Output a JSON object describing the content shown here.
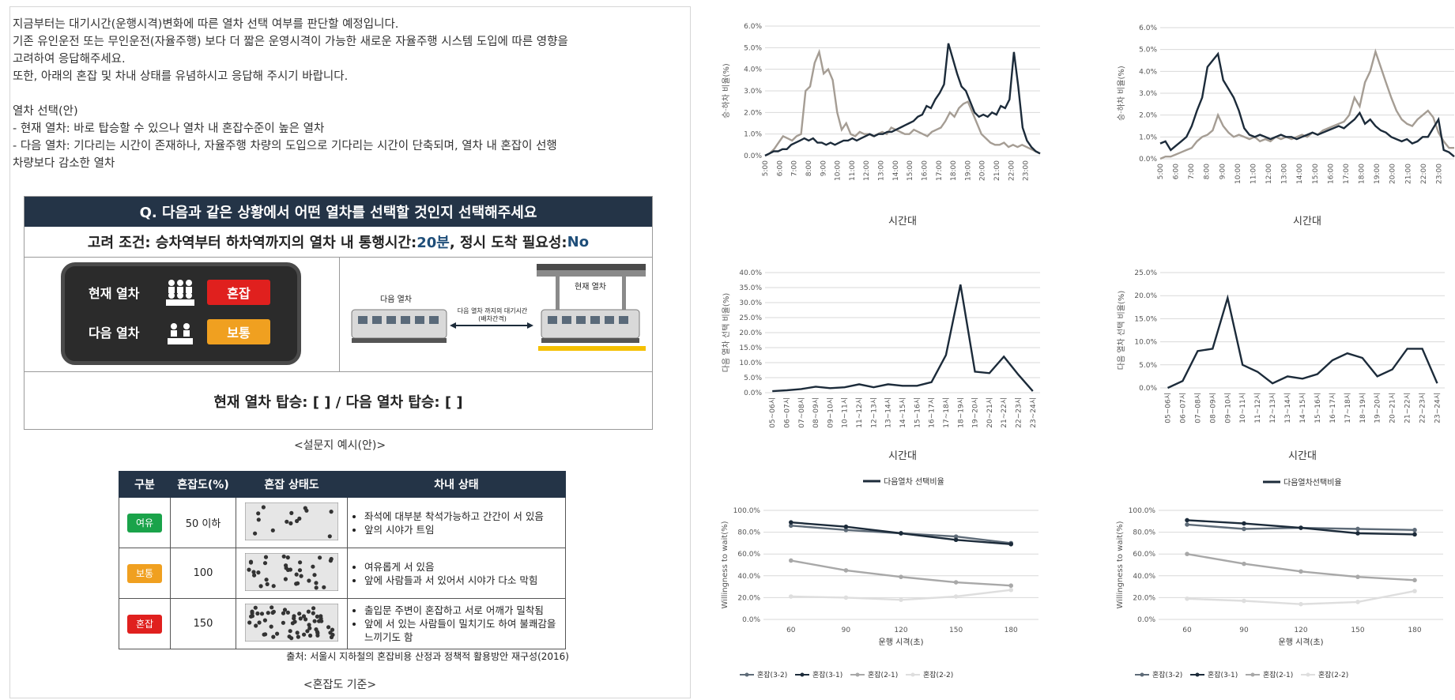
{
  "intro": {
    "lines": [
      "지금부터는 대기시간(운행시격)변화에 따른 열차 선택 여부를 판단할 예정입니다.",
      "기존 유인운전 또는 무인운전(자율주행) 보다 더 짧은 운영시격이 가능한 새로운 자율주행 시스템 도입에 따른 영향을",
      "고려하여 응답해주세요.",
      "또한, 아래의 혼잡 및 차내 상태를 유념하시고 응답해 주시기 바랍니다.",
      "",
      "열차 선택(안)",
      "- 현재 열차: 바로 탑승할 수 있으나 열차 내 혼잡수준이 높은 열차",
      "- 다음 열차: 기다리는 시간이 존재하나, 자율주행 차량의 도입으로 기다리는 시간이 단축되며, 열차 내 혼잡이 선행",
      "  차량보다 감소한 열차"
    ]
  },
  "survey": {
    "question": "Q. 다음과 같은 상황에서 어떤 열차를 선택할 것인지 선택해주세요",
    "condition_prefix": "고려 조건:  승차역부터 하차역까지의 열차 내 통행시간: ",
    "travel_time": "20분",
    "condition_mid": ", 정시 도착 필요성: ",
    "punctuality": "No",
    "current_label": "현재 열차",
    "current_state": "혼잡",
    "next_label": "다음 열차",
    "next_state": "보통",
    "diagram_next": "다음 열차",
    "diagram_current": "현재 열차",
    "diagram_wait": "다음 열차 까지의 대기시간",
    "diagram_headway": "(배차간격)",
    "answer": "현재 열차 탑승: [    ] / 다음 열차 탑승: [  ]",
    "caption": "<설문지 예시(안)>"
  },
  "congestion_table": {
    "headers": [
      "구분",
      "혼잡도(%)",
      "혼잡 상태도",
      "차내 상태"
    ],
    "rows": [
      {
        "level": "여유",
        "color": "#1aa34a",
        "pct": "50 이하",
        "desc": [
          "좌석에 대부분 착석가능하고 간간이 서 있음",
          "앞의 시야가 트임"
        ]
      },
      {
        "level": "보통",
        "color": "#f0a020",
        "pct": "100",
        "desc": [
          "여유롭게 서 있음",
          "앞에 사람들과 서 있어서 시야가 다소 막힘"
        ]
      },
      {
        "level": "혼잡",
        "color": "#e0201e",
        "pct": "150",
        "desc": [
          "출입문 주변이 혼잡하고 서로 어깨가 밀착됨",
          "앞에 서 있는 사람들이 밀치기도 하여 불쾌감을",
          "느끼기도 함"
        ]
      }
    ],
    "source": "출처: 서울시 지하철의 혼잡비용 산정과 정책적 활용방안 재구성(2016)",
    "caption": "<혼잡도 기준>"
  },
  "colors": {
    "dark": "#1c2b3a",
    "gray": "#a59d94",
    "light": "#d8d8d8",
    "mid": "#5e6b78"
  },
  "chart_data": [
    {
      "type": "line",
      "id": "hourly-left",
      "ylabel": "승·하차 비율(%)",
      "xlabel": "시간대",
      "ylim": [
        0,
        6
      ],
      "yticks": [
        "0.0%",
        "1.0%",
        "2.0%",
        "3.0%",
        "4.0%",
        "5.0%",
        "6.0%"
      ],
      "x_ticks": [
        "5:00",
        "6:00",
        "7:00",
        "8:00",
        "9:00",
        "10:00",
        "11:00",
        "12:00",
        "13:00",
        "14:00",
        "15:00",
        "16:00",
        "17:00",
        "18:00",
        "19:00",
        "20:00",
        "21:00",
        "22:00",
        "23:00"
      ],
      "series": [
        {
          "color": "#a59d94",
          "values": [
            0,
            0.1,
            0.3,
            0.6,
            0.9,
            0.8,
            0.7,
            0.9,
            1.0,
            3.0,
            3.2,
            4.3,
            4.8,
            3.8,
            4.0,
            3.5,
            2.0,
            1.2,
            1.5,
            1.0,
            0.9,
            1.1,
            1.0,
            1.0,
            0.9,
            1.0,
            1.1,
            1.0,
            1.3,
            1.2,
            1.1,
            1.0,
            1.0,
            1.2,
            1.1,
            1.0,
            0.9,
            1.1,
            1.2,
            1.3,
            1.6,
            2.0,
            1.8,
            2.2,
            2.4,
            2.5,
            2.0,
            1.5,
            1.0,
            0.8,
            0.6,
            0.5,
            0.5,
            0.6,
            0.4,
            0.5,
            0.4,
            0.5,
            0.4,
            0.3,
            0.2,
            0.1
          ]
        },
        {
          "color": "#1c2b3a",
          "values": [
            0,
            0.1,
            0.2,
            0.2,
            0.3,
            0.3,
            0.5,
            0.6,
            0.7,
            0.8,
            0.7,
            0.8,
            0.6,
            0.6,
            0.5,
            0.6,
            0.5,
            0.6,
            0.7,
            0.7,
            0.8,
            0.7,
            0.8,
            0.9,
            1.0,
            0.9,
            1.0,
            1.0,
            1.1,
            1.1,
            1.2,
            1.3,
            1.4,
            1.5,
            1.6,
            1.8,
            1.9,
            2.3,
            2.2,
            2.6,
            2.9,
            3.3,
            5.2,
            4.5,
            3.8,
            3.2,
            3.0,
            2.5,
            2.0,
            1.8,
            1.9,
            1.8,
            2.0,
            1.9,
            2.3,
            2.2,
            2.6,
            4.8,
            3.2,
            1.3,
            0.7,
            0.4,
            0.2,
            0.1
          ]
        }
      ]
    },
    {
      "type": "line",
      "id": "hourly-right",
      "ylabel": "승·하차 비율(%)",
      "xlabel": "시간대",
      "ylim": [
        0,
        6
      ],
      "yticks": [
        "0.0%",
        "1.0%",
        "2.0%",
        "3.0%",
        "4.0%",
        "5.0%",
        "6.0%"
      ],
      "x_ticks": [
        "5:00",
        "6:00",
        "7:00",
        "8:00",
        "9:00",
        "10:00",
        "11:00",
        "12:00",
        "13:00",
        "14:00",
        "15:00",
        "16:00",
        "17:00",
        "18:00",
        "19:00",
        "20:00",
        "21:00",
        "22:00",
        "23:00"
      ],
      "series": [
        {
          "color": "#a59d94",
          "values": [
            0,
            0.1,
            0.1,
            0.2,
            0.3,
            0.4,
            0.5,
            0.8,
            1.0,
            1.1,
            1.3,
            2.0,
            1.5,
            1.2,
            1.0,
            1.1,
            1.0,
            0.9,
            1.0,
            0.8,
            0.9,
            0.8,
            1.0,
            0.9,
            1.0,
            0.9,
            1.0,
            1.1,
            1.0,
            1.2,
            1.1,
            1.3,
            1.4,
            1.5,
            1.6,
            1.7,
            2.0,
            2.8,
            2.4,
            3.5,
            4.0,
            4.9,
            4.2,
            3.5,
            2.8,
            2.2,
            1.8,
            1.6,
            1.5,
            1.8,
            2.0,
            2.2,
            1.9,
            1.2,
            0.8,
            0.5,
            0.5
          ]
        },
        {
          "color": "#1c2b3a",
          "values": [
            0.7,
            0.8,
            0.4,
            0.6,
            0.8,
            1.0,
            1.5,
            2.2,
            2.8,
            4.2,
            4.5,
            4.8,
            3.6,
            3.2,
            2.8,
            2.2,
            1.4,
            1.1,
            1.0,
            1.1,
            1.0,
            0.9,
            1.0,
            1.1,
            1.0,
            1.0,
            0.9,
            1.0,
            1.1,
            1.2,
            1.1,
            1.2,
            1.3,
            1.4,
            1.5,
            1.4,
            1.6,
            1.8,
            2.1,
            1.6,
            1.8,
            1.5,
            1.3,
            1.2,
            1.0,
            0.9,
            0.8,
            0.9,
            0.7,
            0.8,
            1.0,
            1.0,
            1.4,
            1.8,
            0.4,
            0.3,
            0.1
          ]
        }
      ]
    },
    {
      "type": "line",
      "id": "next-left",
      "ylabel": "다음 열차 선택 비율(%)",
      "xlabel": "시간대",
      "ylim": [
        0,
        40
      ],
      "yticks": [
        "0.0%",
        "5.0%",
        "10.0%",
        "15.0%",
        "20.0%",
        "25.0%",
        "30.0%",
        "35.0%",
        "40.0%"
      ],
      "categories": [
        "05~06시",
        "06~07시",
        "07~08시",
        "08~09시",
        "09~10시",
        "10~11시",
        "11~12시",
        "12~13시",
        "13~14시",
        "14~15시",
        "15~16시",
        "16~17시",
        "17~18시",
        "18~19시",
        "19~20시",
        "20~21시",
        "21~22시",
        "22~23시",
        "23~24시"
      ],
      "legend": "다음열차 선택비율",
      "series": [
        {
          "name": "다음열차 선택비율",
          "color": "#1c2b3a",
          "values": [
            0.5,
            0.8,
            1.2,
            2.0,
            1.5,
            1.8,
            2.8,
            1.8,
            2.8,
            2.3,
            2.3,
            3.5,
            12.5,
            36.0,
            7.0,
            6.5,
            12.0,
            6.0,
            0.5
          ]
        }
      ]
    },
    {
      "type": "line",
      "id": "next-right",
      "ylabel": "다음 열차 선택 비율(%)",
      "xlabel": "시간대",
      "ylim": [
        0,
        25
      ],
      "yticks": [
        "0.0%",
        "5.0%",
        "10.0%",
        "15.0%",
        "20.0%",
        "25.0%"
      ],
      "categories": [
        "05~06시",
        "06~07시",
        "07~08시",
        "08~09시",
        "09~10시",
        "10~11시",
        "11~12시",
        "12~13시",
        "13~14시",
        "14~15시",
        "15~16시",
        "16~17시",
        "17~18시",
        "18~19시",
        "19~20시",
        "20~21시",
        "21~22시",
        "22~23시",
        "23~24시"
      ],
      "legend": "다음열차선택비율",
      "series": [
        {
          "name": "다음열차선택비율",
          "color": "#1c2b3a",
          "values": [
            0.0,
            1.5,
            8.0,
            8.5,
            19.5,
            5.0,
            3.5,
            1.0,
            2.5,
            2.0,
            3.0,
            6.0,
            7.5,
            6.5,
            2.5,
            4.0,
            8.5,
            8.5,
            1.0
          ]
        }
      ]
    },
    {
      "type": "line",
      "id": "wtw-left",
      "ylabel": "Willingness to wait(%)",
      "xlabel": "운행 시격(초)",
      "ylim": [
        0,
        100
      ],
      "yticks": [
        "0.0%",
        "20.0%",
        "40.0%",
        "60.0%",
        "80.0%",
        "100.0%"
      ],
      "x": [
        "60",
        "90",
        "120",
        "150",
        "180"
      ],
      "series": [
        {
          "name": "혼잡(3-2)",
          "color": "#5e6b78",
          "values": [
            86,
            82,
            79,
            76,
            70
          ]
        },
        {
          "name": "혼잡(3-1)",
          "color": "#1c2b3a",
          "values": [
            89,
            85,
            79,
            73,
            69
          ]
        },
        {
          "name": "혼잡(2-1)",
          "color": "#a8a8a8",
          "values": [
            54,
            45,
            39,
            34,
            31
          ]
        },
        {
          "name": "혼잡(2-2)",
          "color": "#dedede",
          "values": [
            21,
            20,
            18,
            21,
            27
          ]
        }
      ]
    },
    {
      "type": "line",
      "id": "wtw-right",
      "ylabel": "Willingness to wait(%)",
      "xlabel": "운행 시격(초)",
      "ylim": [
        0,
        100
      ],
      "yticks": [
        "0.0%",
        "20.0%",
        "40.0%",
        "60.0%",
        "80.0%",
        "100.0%"
      ],
      "x": [
        "60",
        "90",
        "120",
        "150",
        "180"
      ],
      "series": [
        {
          "name": "혼잡(3-2)",
          "color": "#5e6b78",
          "values": [
            87,
            83,
            84,
            83,
            82
          ]
        },
        {
          "name": "혼잡(3-1)",
          "color": "#1c2b3a",
          "values": [
            91,
            88,
            84,
            79,
            78
          ]
        },
        {
          "name": "혼잡(2-1)",
          "color": "#a8a8a8",
          "values": [
            60,
            51,
            44,
            39,
            36
          ]
        },
        {
          "name": "혼잡(2-2)",
          "color": "#dedede",
          "values": [
            19,
            17,
            14,
            16,
            26
          ]
        }
      ]
    }
  ]
}
